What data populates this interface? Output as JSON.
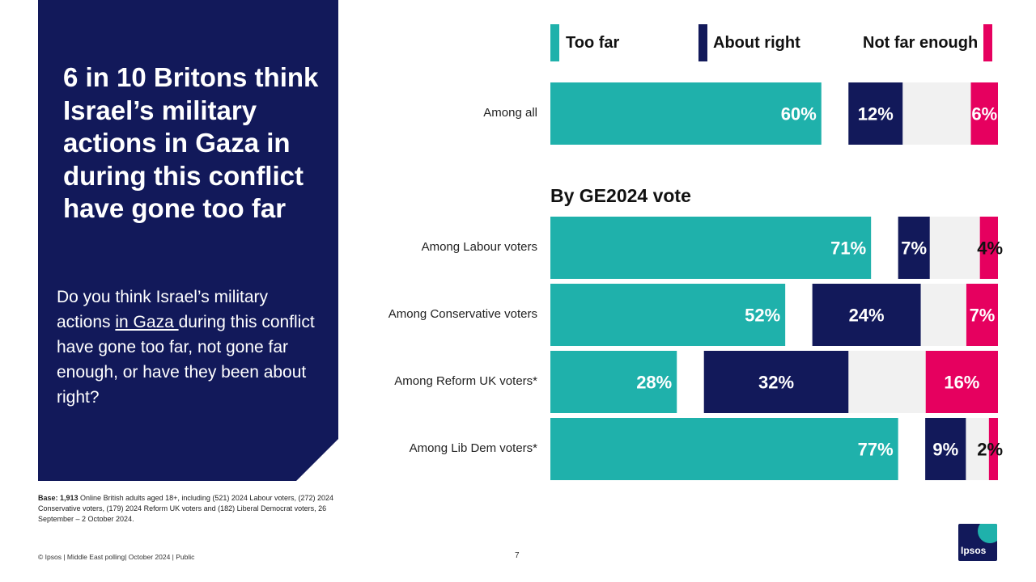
{
  "headline": "6 in 10 Britons think Israel’s military actions in Gaza in during this conflict have gone too far",
  "question": {
    "before": "Do you think Israel’s military actions ",
    "underlined": "in Gaza ",
    "after": "during this conflict have gone too far, not gone far enough, or have they been about right?"
  },
  "base": {
    "label": "Base: 1,913",
    "text": " Online British adults aged 18+, including (521) 2024 Labour voters, (272) 2024 Conservative voters, (179) 2024 Reform UK voters and (182) Liberal Democrat voters, 26 September – 2 October 2024."
  },
  "footer": "© Ipsos | Middle East polling| October 2024 | Public",
  "page_number": "7",
  "logo_text": "Ipsos",
  "colors": {
    "too_far": "#1fb1ab",
    "about_right": "#12195a",
    "not_far_enough": "#e6005f",
    "gap": "#f1f1f1",
    "panel": "#12195a"
  },
  "chart_data": {
    "type": "bar",
    "orientation": "horizontal",
    "legend": [
      "Too far",
      "About right",
      "Not far enough"
    ],
    "section_title": "By GE2024 vote",
    "categories": [
      "Among all",
      "Among Labour voters",
      "Among Conservative voters",
      "Among Reform UK voters*",
      "Among Lib Dem voters*"
    ],
    "series": [
      {
        "name": "Too far",
        "values": [
          60,
          71,
          52,
          28,
          77
        ],
        "labels": [
          "60%",
          "71%",
          "52%",
          "28%",
          "77%"
        ]
      },
      {
        "name": "About right",
        "values": [
          12,
          7,
          24,
          32,
          9
        ],
        "labels": [
          "12%",
          "7%",
          "24%",
          "32%",
          "9%"
        ]
      },
      {
        "name": "Not far enough",
        "values": [
          6,
          4,
          7,
          16,
          2
        ],
        "labels": [
          "6%",
          "4%",
          "7%",
          "16%",
          "2%"
        ]
      }
    ]
  }
}
